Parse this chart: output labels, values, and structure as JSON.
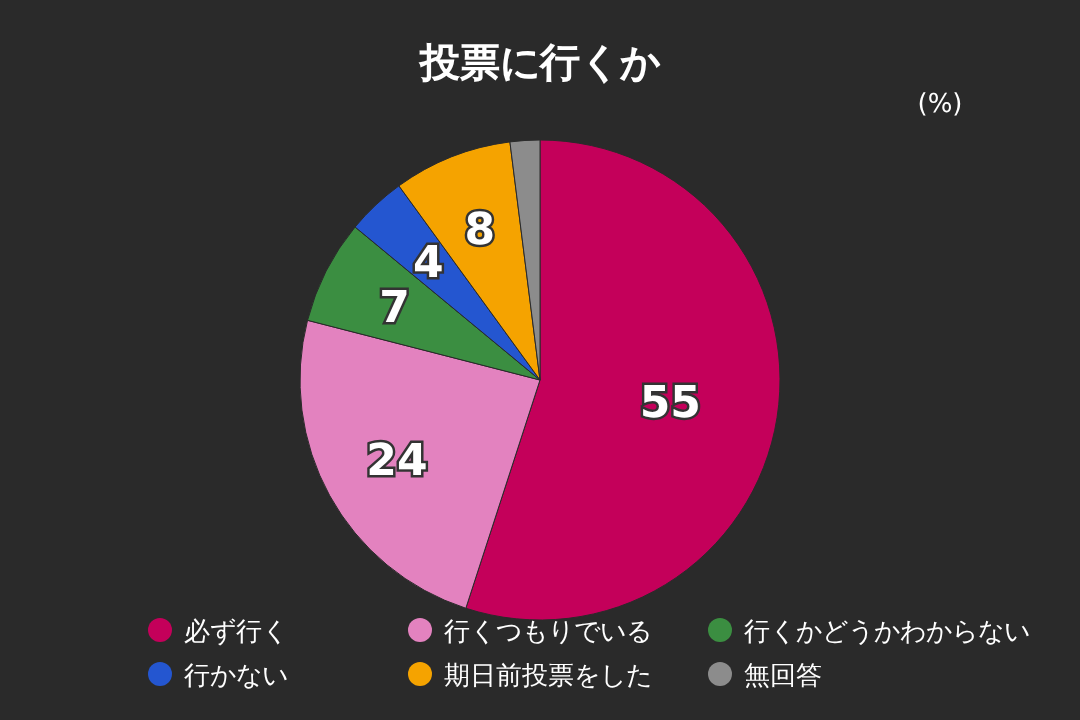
{
  "chart_data": {
    "type": "pie",
    "title": "投票に行くか",
    "annotations": [
      "(%)"
    ],
    "categories": [
      "必ず行く",
      "行くつもりでいる",
      "行くかどうかわからない",
      "行かない",
      "期日前投票をした",
      "無回答"
    ],
    "values": [
      55,
      24,
      7,
      4,
      8,
      2
    ],
    "colors": [
      "#c4005a",
      "#e382bf",
      "#3b8e41",
      "#2456d0",
      "#f5a300",
      "#8c8c8c"
    ],
    "value_labels": [
      "55",
      "24",
      "7",
      "4",
      "8",
      null
    ],
    "legend": "bottom"
  }
}
